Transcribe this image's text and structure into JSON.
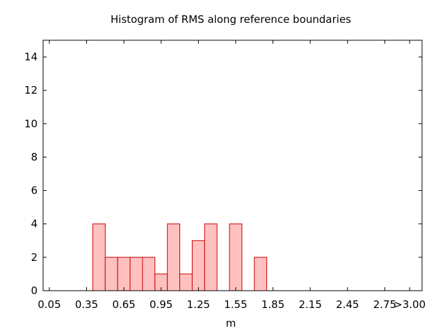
{
  "chart_data": {
    "type": "bar",
    "title": "Histogram of RMS along reference boundaries",
    "xlabel": "m",
    "ylabel": "",
    "x_ticks": [
      "0.05",
      "0.35",
      "0.65",
      "0.95",
      "1.25",
      "1.55",
      "1.85",
      "2.15",
      "2.45",
      "2.75",
      ">3.00"
    ],
    "y_ticks": [
      "0",
      "2",
      "4",
      "6",
      "8",
      "10",
      "12",
      "14"
    ],
    "xlim": [
      0.0,
      3.05
    ],
    "ylim": [
      0,
      15
    ],
    "bin_width": 0.1,
    "bins": [
      {
        "x0": 0.4,
        "value": 4
      },
      {
        "x0": 0.5,
        "value": 2
      },
      {
        "x0": 0.6,
        "value": 2
      },
      {
        "x0": 0.7,
        "value": 2
      },
      {
        "x0": 0.8,
        "value": 2
      },
      {
        "x0": 0.9,
        "value": 1
      },
      {
        "x0": 1.0,
        "value": 4
      },
      {
        "x0": 1.1,
        "value": 1
      },
      {
        "x0": 1.2,
        "value": 3
      },
      {
        "x0": 1.3,
        "value": 4
      },
      {
        "x0": 1.5,
        "value": 4
      },
      {
        "x0": 1.7,
        "value": 2
      }
    ],
    "grid": false,
    "colors": {
      "bar_fill": "#ffc0c0",
      "bar_stroke": "#cc0000",
      "axis": "#000000"
    }
  }
}
